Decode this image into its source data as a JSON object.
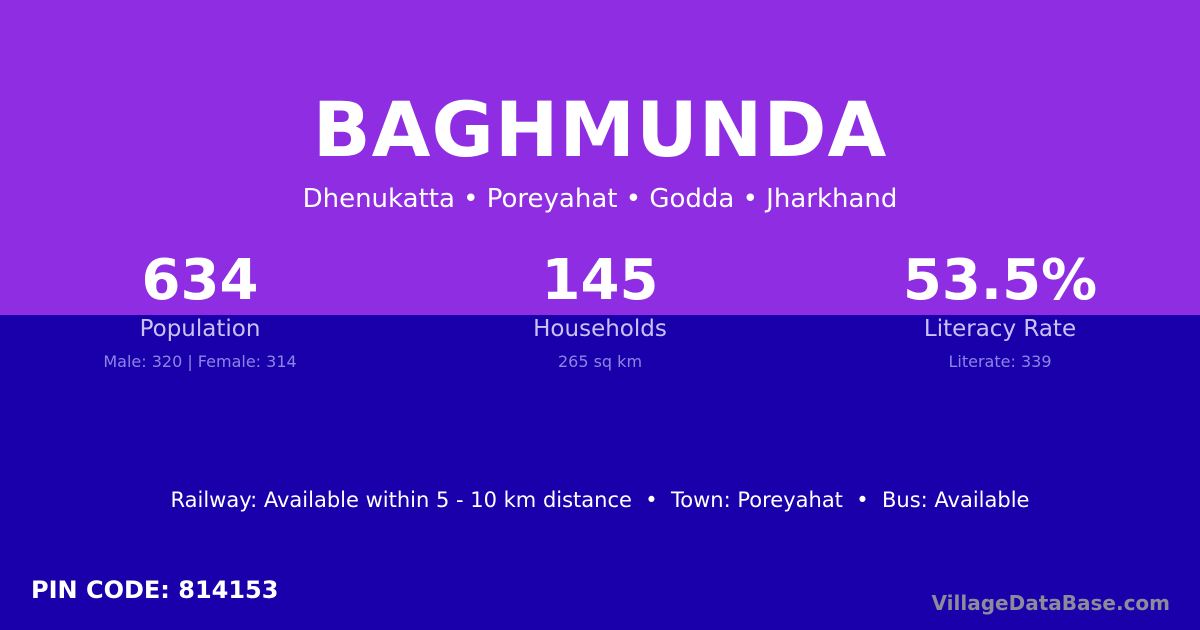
{
  "village": {
    "name": "BAGHMUNDA",
    "location": "Dhenukatta • Poreyahat • Godda • Jharkhand"
  },
  "stats": [
    {
      "value": "634",
      "label": "Population",
      "sub": "Male: 320 | Female: 314"
    },
    {
      "value": "145",
      "label": "Households",
      "sub": "265 sq km"
    },
    {
      "value": "53.5%",
      "label": "Literacy Rate",
      "sub": "Literate: 339"
    }
  ],
  "transport": "Railway: Available within 5 - 10 km distance  •  Town: Poreyahat  •  Bus: Available",
  "pin_code": "PIN CODE: 814153",
  "brand": "VillageDataBase.com",
  "colors": {
    "top": "#8e2de2",
    "bottom": "#1a00aa"
  }
}
